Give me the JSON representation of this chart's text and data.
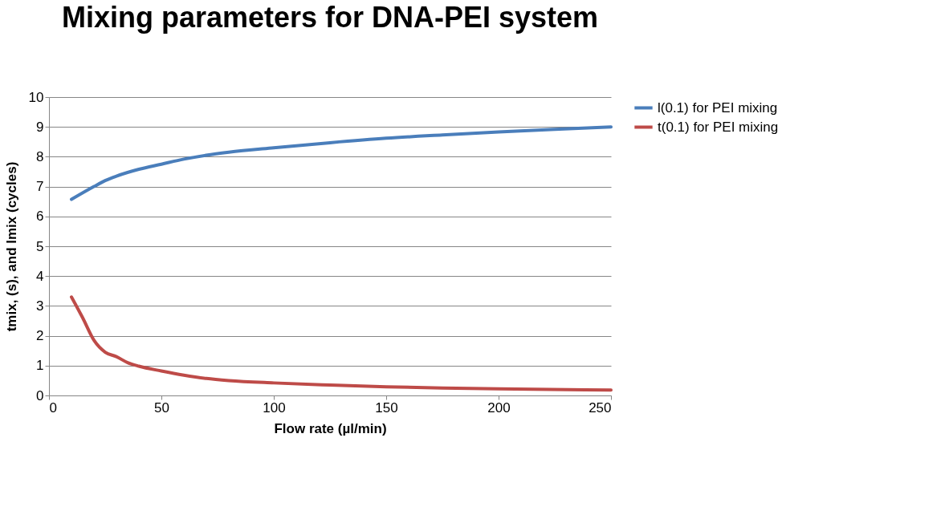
{
  "chart_data": {
    "type": "line",
    "title": "Mixing parameters for DNA-PEI system",
    "xlabel": "Flow rate (µl/min)",
    "ylabel": "tmix, (s), and lmix (cycles)",
    "xlim": [
      0,
      250
    ],
    "xticks": [
      0,
      50,
      100,
      150,
      200,
      250
    ],
    "ylim": [
      0,
      10
    ],
    "yticks": [
      0,
      1,
      2,
      3,
      4,
      5,
      6,
      7,
      8,
      9,
      10
    ],
    "grid": "y",
    "legend": "right",
    "marker": "none",
    "line_style": "solid",
    "series": [
      {
        "name": "l(0.1) for PEI mixing",
        "color": "#4a7ebb",
        "x": [
          10,
          20,
          25,
          30,
          40,
          50,
          60,
          70,
          80,
          100,
          125,
          150,
          175,
          200,
          225,
          250
        ],
        "values": [
          6.57,
          7.0,
          7.2,
          7.35,
          7.58,
          7.75,
          7.92,
          8.05,
          8.15,
          8.3,
          8.47,
          8.62,
          8.73,
          8.83,
          8.92,
          9.0
        ]
      },
      {
        "name": "t(0.1) for PEI mixing",
        "color": "#be4b48",
        "x": [
          10,
          15,
          20,
          25,
          30,
          35,
          40,
          50,
          60,
          70,
          80,
          100,
          125,
          150,
          175,
          200,
          250
        ],
        "values": [
          3.3,
          2.6,
          1.85,
          1.45,
          1.3,
          1.1,
          0.98,
          0.82,
          0.68,
          0.57,
          0.5,
          0.42,
          0.35,
          0.29,
          0.25,
          0.22,
          0.18
        ]
      }
    ]
  }
}
